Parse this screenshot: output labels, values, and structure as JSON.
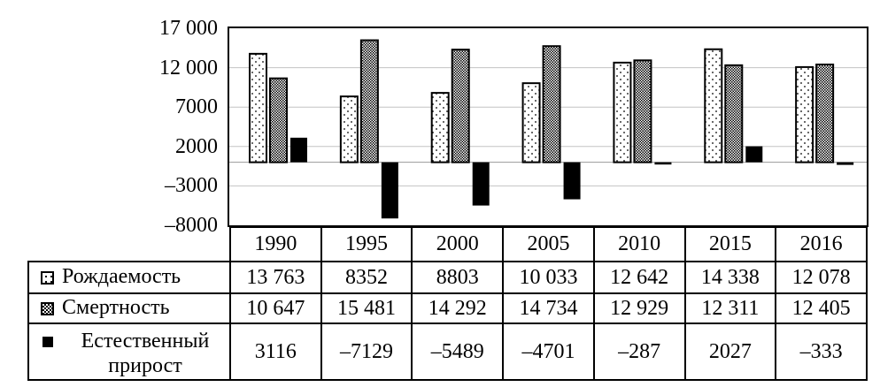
{
  "colors": {
    "background": "#ffffff",
    "text": "#000000",
    "bar_border": "#000000",
    "gridline": "#c3c3c3",
    "zero_axis": "#9a9a9a",
    "death_bar_tone": "#9e9e9e",
    "natural_bar": "#000000"
  },
  "chart_data": {
    "type": "bar",
    "title": "",
    "xlabel": "",
    "ylabel": "",
    "categories": [
      "1990",
      "1995",
      "2000",
      "2005",
      "2010",
      "2015",
      "2016"
    ],
    "series": [
      {
        "key": "birth-rate",
        "name": "Рождаемость",
        "fill_style": "dotted-white",
        "values": [
          13763,
          8352,
          8803,
          10033,
          12642,
          14338,
          12078
        ]
      },
      {
        "key": "death-rate",
        "name": "Смертность",
        "fill_style": "checker-gray",
        "values": [
          10647,
          15481,
          14292,
          14734,
          12929,
          12311,
          12405
        ]
      },
      {
        "key": "natural-increase",
        "name": "Естественный прирост",
        "fill_style": "solid-black",
        "values": [
          3116,
          -7129,
          -5489,
          -4701,
          -287,
          2027,
          -333
        ]
      }
    ],
    "ylim": [
      -8000,
      17000
    ],
    "ytick_step": 5000,
    "yticks": [
      17000,
      12000,
      7000,
      2000,
      -3000,
      -8000
    ],
    "ytick_labels": [
      "17 000",
      "12 000",
      "7000",
      "2000",
      "–3000",
      "–8000"
    ],
    "gridline_values": [
      12000,
      7000,
      2000,
      0,
      -3000
    ],
    "grid": true,
    "legend_position": "table-rows-left"
  },
  "table": {
    "year_headers": [
      "1990",
      "1995",
      "2000",
      "2005",
      "2010",
      "2015",
      "2016"
    ],
    "rows": [
      {
        "label": "Рождаемость",
        "legend_icon": "dotted-white-square",
        "cells": [
          "13 763",
          "8352",
          "8803",
          "10 033",
          "12 642",
          "14 338",
          "12 078"
        ]
      },
      {
        "label": "Смертность",
        "legend_icon": "checker-gray-square",
        "cells": [
          "10 647",
          "15 481",
          "14 292",
          "14 734",
          "12 929",
          "12 311",
          "12 405"
        ]
      },
      {
        "label": "Естественный прирост",
        "legend_icon": "black-square",
        "cells": [
          "3116",
          "–7129",
          "–5489",
          "–4701",
          "–287",
          "2027",
          "–333"
        ]
      }
    ]
  }
}
